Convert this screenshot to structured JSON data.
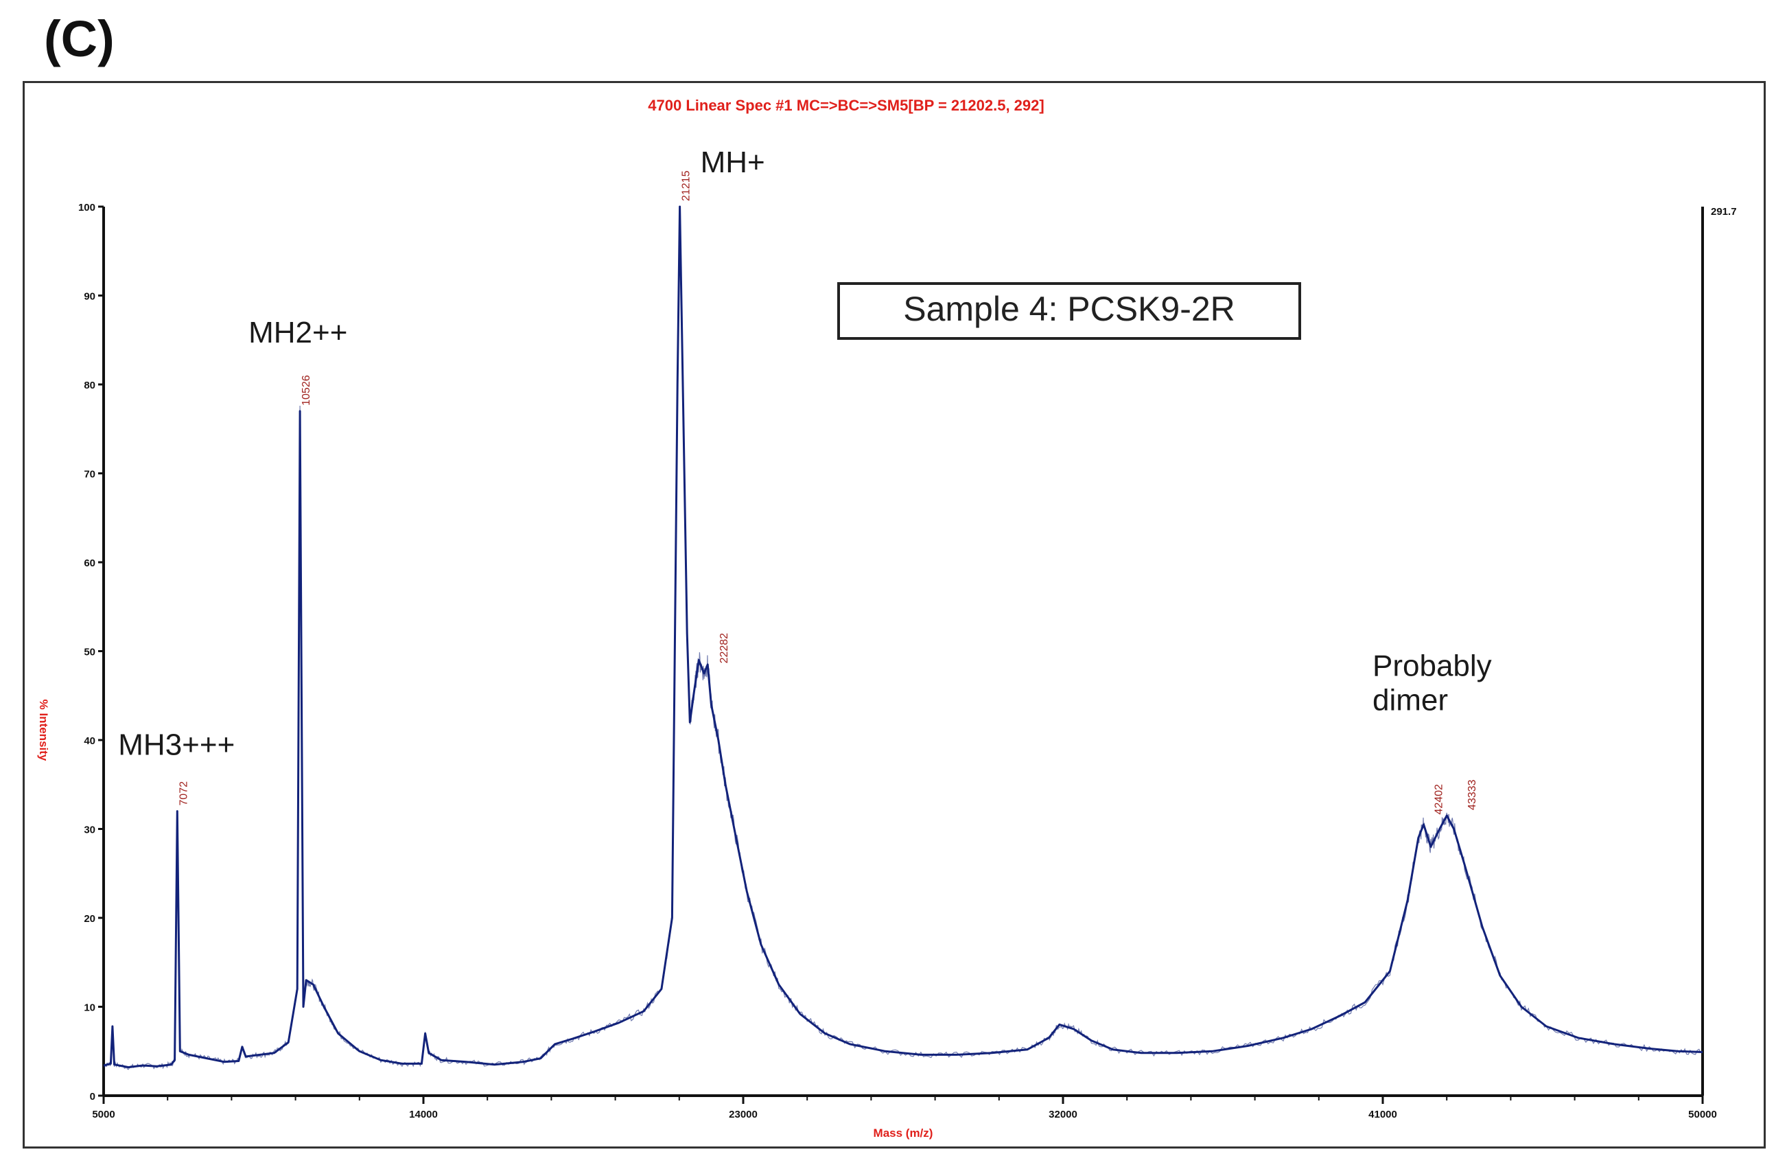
{
  "panel_label": "(C)",
  "chart_data": {
    "type": "line",
    "title": "4700 Linear Spec #1 MC=>BC=>SM5[BP = 21202.5, 292]",
    "xlabel": "Mass (m/z)",
    "ylabel": "% Intensity",
    "xlim": [
      5000,
      50000
    ],
    "ylim": [
      0,
      100
    ],
    "x_ticks": [
      5000,
      14000,
      23000,
      32000,
      41000,
      50000
    ],
    "x_tick_labels": [
      "5000",
      "14000",
      "23000",
      "32000",
      "41000",
      "50000"
    ],
    "y_ticks": [
      0,
      10,
      20,
      30,
      40,
      50,
      60,
      70,
      80,
      90,
      100
    ],
    "y_tick_labels": [
      "0",
      "10",
      "20",
      "30",
      "40",
      "50",
      "60",
      "70",
      "80",
      "90",
      "100"
    ],
    "right_axis_label": "291.7",
    "grid": false,
    "legend": "none",
    "line_color": "#13237a",
    "title_color": "#e0201b",
    "peak_label_color": "#a0221e",
    "boxed_annotation": "Sample 4: PCSK9-2R",
    "series": [
      {
        "points": [
          [
            5000,
            3.4
          ],
          [
            5200,
            3.6
          ],
          [
            5250,
            7.8
          ],
          [
            5300,
            3.5
          ],
          [
            5700,
            3.2
          ],
          [
            6100,
            3.4
          ],
          [
            6500,
            3.3
          ],
          [
            6900,
            3.5
          ],
          [
            7000,
            4.0
          ],
          [
            7072,
            32.0
          ],
          [
            7150,
            5.0
          ],
          [
            7400,
            4.6
          ],
          [
            7900,
            4.2
          ],
          [
            8400,
            3.8
          ],
          [
            8800,
            3.9
          ],
          [
            8900,
            5.5
          ],
          [
            9000,
            4.4
          ],
          [
            9400,
            4.6
          ],
          [
            9800,
            4.8
          ],
          [
            10200,
            6.0
          ],
          [
            10450,
            12.0
          ],
          [
            10526,
            77.0
          ],
          [
            10620,
            10.0
          ],
          [
            10700,
            13.0
          ],
          [
            10900,
            12.5
          ],
          [
            11200,
            10.0
          ],
          [
            11600,
            7.0
          ],
          [
            12200,
            5.0
          ],
          [
            12800,
            4.0
          ],
          [
            13400,
            3.6
          ],
          [
            13950,
            3.6
          ],
          [
            14050,
            7.0
          ],
          [
            14150,
            4.8
          ],
          [
            14500,
            4.0
          ],
          [
            15200,
            3.8
          ],
          [
            16000,
            3.5
          ],
          [
            16800,
            3.8
          ],
          [
            17300,
            4.2
          ],
          [
            17700,
            5.8
          ],
          [
            18200,
            6.4
          ],
          [
            18800,
            7.2
          ],
          [
            19500,
            8.2
          ],
          [
            20200,
            9.5
          ],
          [
            20700,
            12.0
          ],
          [
            21000,
            20.0
          ],
          [
            21150,
            80.0
          ],
          [
            21215,
            100.0
          ],
          [
            21300,
            80.0
          ],
          [
            21420,
            52.0
          ],
          [
            21500,
            42.0
          ],
          [
            21620,
            45.5
          ],
          [
            21750,
            49.0
          ],
          [
            21900,
            47.5
          ],
          [
            22000,
            48.5
          ],
          [
            22100,
            44.0
          ],
          [
            22300,
            40.0
          ],
          [
            22500,
            35.0
          ],
          [
            22800,
            29.0
          ],
          [
            23100,
            23.0
          ],
          [
            23500,
            17.0
          ],
          [
            24000,
            12.5
          ],
          [
            24600,
            9.2
          ],
          [
            25300,
            7.0
          ],
          [
            26000,
            5.8
          ],
          [
            27000,
            5.0
          ],
          [
            28000,
            4.6
          ],
          [
            29000,
            4.6
          ],
          [
            30000,
            4.8
          ],
          [
            31000,
            5.2
          ],
          [
            31600,
            6.5
          ],
          [
            31900,
            8.0
          ],
          [
            32300,
            7.5
          ],
          [
            32800,
            6.2
          ],
          [
            33400,
            5.2
          ],
          [
            34200,
            4.8
          ],
          [
            35200,
            4.8
          ],
          [
            36200,
            5.0
          ],
          [
            37200,
            5.6
          ],
          [
            38200,
            6.5
          ],
          [
            39000,
            7.5
          ],
          [
            39800,
            9.0
          ],
          [
            40500,
            10.5
          ],
          [
            41200,
            14.0
          ],
          [
            41700,
            22.0
          ],
          [
            42000,
            29.0
          ],
          [
            42150,
            30.5
          ],
          [
            42350,
            28.0
          ],
          [
            42600,
            30.0
          ],
          [
            42800,
            31.5
          ],
          [
            43000,
            30.0
          ],
          [
            43300,
            26.0
          ],
          [
            43800,
            19.0
          ],
          [
            44300,
            13.5
          ],
          [
            44900,
            10.0
          ],
          [
            45600,
            7.8
          ],
          [
            46500,
            6.5
          ],
          [
            47500,
            5.8
          ],
          [
            48500,
            5.3
          ],
          [
            49300,
            5.0
          ],
          [
            50000,
            4.9
          ]
        ]
      }
    ],
    "peak_labels": [
      {
        "x": 7072,
        "y": 32,
        "text": "7072"
      },
      {
        "x": 10526,
        "y": 77,
        "text": "10526"
      },
      {
        "x": 21215,
        "y": 100,
        "text": "21215"
      },
      {
        "x": 22282,
        "y": 48,
        "text": "22282"
      },
      {
        "x": 42402,
        "y": 31,
        "text": "42402"
      },
      {
        "x": 43333,
        "y": 31.5,
        "text": "43333"
      }
    ],
    "annotations": [
      {
        "text": "MH3+++",
        "x": 7072,
        "y": 32
      },
      {
        "text": "MH2++",
        "x": 10526,
        "y": 77
      },
      {
        "text": "MH+",
        "x": 21215,
        "y": 100
      },
      {
        "text": "Probably",
        "x": 42700,
        "y": 31
      },
      {
        "text": "dimer",
        "x": 42700,
        "y": 31
      }
    ]
  }
}
